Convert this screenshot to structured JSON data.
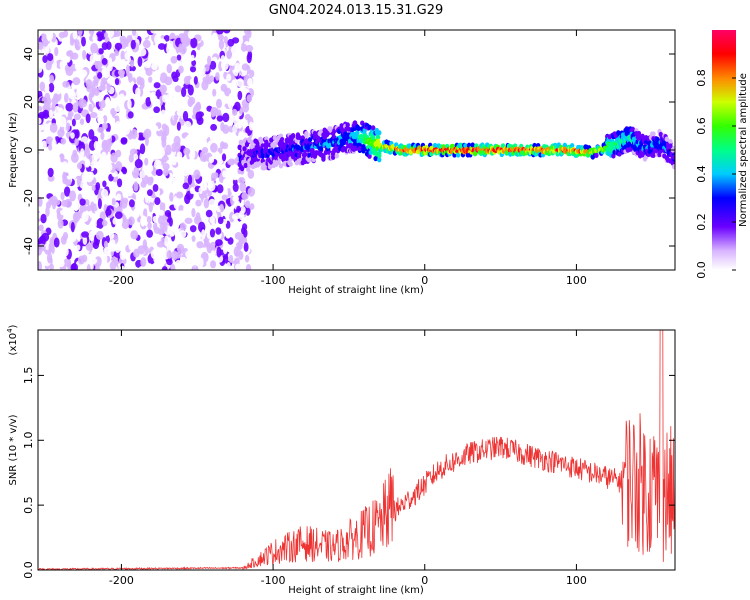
{
  "title": "GN04.2024.013.15.31.G29",
  "chart_data": [
    {
      "type": "heatmap",
      "xlabel": "Height of straight line (km)",
      "ylabel": "Frequency (Hz)",
      "xlim": [
        -255,
        165
      ],
      "ylim": [
        -50,
        50
      ],
      "xticks": [
        -200,
        -100,
        0,
        100
      ],
      "yticks": [
        -40,
        -20,
        0,
        20,
        40
      ],
      "colorbar": {
        "label": "Normalized spectral amplitude",
        "range": [
          0,
          1
        ],
        "ticks": [
          "0.0",
          "0.2",
          "0.4",
          "0.6",
          "0.8"
        ]
      },
      "noise_region_x": [
        -255,
        -118
      ],
      "ridge": [
        {
          "x": -120,
          "f": -2,
          "amp": 0.25
        },
        {
          "x": -100,
          "f": -1,
          "amp": 0.3
        },
        {
          "x": -80,
          "f": 1,
          "amp": 0.35
        },
        {
          "x": -60,
          "f": 3,
          "amp": 0.4
        },
        {
          "x": -45,
          "f": 6,
          "amp": 0.45
        },
        {
          "x": -38,
          "f": 4,
          "amp": 0.65
        },
        {
          "x": -30,
          "f": 2,
          "amp": 0.8
        },
        {
          "x": -15,
          "f": 0,
          "amp": 0.9
        },
        {
          "x": 0,
          "f": 0,
          "amp": 0.95
        },
        {
          "x": 40,
          "f": 0,
          "amp": 0.95
        },
        {
          "x": 70,
          "f": 0,
          "amp": 0.9
        },
        {
          "x": 95,
          "f": 0,
          "amp": 0.92
        },
        {
          "x": 110,
          "f": -1,
          "amp": 0.8
        },
        {
          "x": 125,
          "f": 2,
          "amp": 0.6
        },
        {
          "x": 135,
          "f": 5,
          "amp": 0.5
        },
        {
          "x": 145,
          "f": 1,
          "amp": 0.4
        },
        {
          "x": 155,
          "f": 3,
          "amp": 0.4
        },
        {
          "x": 165,
          "f": -3,
          "amp": 0.3
        }
      ]
    },
    {
      "type": "line",
      "xlabel": "Height of straight line (km)",
      "ylabel": "SNR (10 * v/v)",
      "yscale_label": "(x10",
      "yscale_exp": "4",
      "yscale_close": ")",
      "xlim": [
        -255,
        165
      ],
      "ylim": [
        0,
        1.85
      ],
      "xticks": [
        -200,
        -100,
        0,
        100
      ],
      "yticks": [
        "0.0",
        "0.5",
        "1.0",
        "1.5"
      ],
      "series_color": "#ee3333",
      "envelope": [
        {
          "x": -255,
          "y": 0.0
        },
        {
          "x": -120,
          "y": 0.01
        },
        {
          "x": -100,
          "y": 0.12
        },
        {
          "x": -80,
          "y": 0.18
        },
        {
          "x": -60,
          "y": 0.15
        },
        {
          "x": -45,
          "y": 0.22
        },
        {
          "x": -30,
          "y": 0.3
        },
        {
          "x": -20,
          "y": 0.45
        },
        {
          "x": -5,
          "y": 0.6
        },
        {
          "x": 10,
          "y": 0.78
        },
        {
          "x": 30,
          "y": 0.9
        },
        {
          "x": 50,
          "y": 0.95
        },
        {
          "x": 70,
          "y": 0.88
        },
        {
          "x": 90,
          "y": 0.82
        },
        {
          "x": 110,
          "y": 0.75
        },
        {
          "x": 130,
          "y": 0.68
        },
        {
          "x": 145,
          "y": 0.6
        },
        {
          "x": 165,
          "y": 0.5
        }
      ]
    }
  ]
}
